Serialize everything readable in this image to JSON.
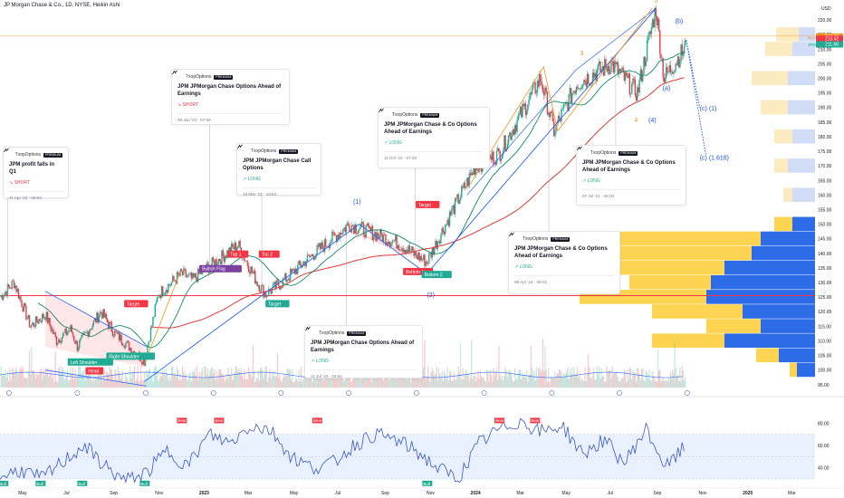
{
  "header": {
    "title": "JP Morgan Chase & Co., 1D, NYSE, Heikin Ashi"
  },
  "colors": {
    "up": "#22ab94",
    "down": "#f23645",
    "sma_red": "#e53935",
    "sma_green": "#0b8a6a",
    "channel_blue": "#2962ff",
    "wave_orange": "#f7931a",
    "wave_blue": "#1e53e5",
    "vp_yellow": "#fcd451",
    "vp_blue": "#2e6be6",
    "rsi_line": "#3a56c6"
  },
  "chart_data": {
    "type": "candlestick",
    "y_axis": {
      "currency": "USD",
      "ticks": [
        "95.00",
        "100.00",
        "105.00",
        "110.00",
        "115.00",
        "120.00",
        "125.00",
        "130.00",
        "135.00",
        "140.00",
        "145.00",
        "150.00",
        "155.00",
        "160.00",
        "165.00",
        "170.00",
        "175.00",
        "180.00",
        "185.00",
        "190.00",
        "195.00",
        "200.00",
        "205.00",
        "210.00",
        "215.00",
        "220.00"
      ],
      "ylim": [
        94,
        225
      ]
    },
    "x_axis": {
      "ticks": [
        "May",
        "Jul",
        "Sep",
        "Nov",
        "2023",
        "Mar",
        "May",
        "Jul",
        "Sep",
        "Nov",
        "2024",
        "Mar",
        "May",
        "Jul",
        "Sep",
        "Nov",
        "2025",
        "Mar"
      ]
    },
    "price_labels": [
      {
        "text": "213.99",
        "value": 213.99,
        "color": "#f7931a"
      },
      {
        "text": "213.42",
        "value": 213.42,
        "color": "#f23645"
      },
      {
        "text": "211.68",
        "value": 211.68,
        "color": "#22ab94"
      }
    ],
    "price_label_tags": [
      "Rev",
      "JPM"
    ],
    "horizontal_line": {
      "value": 125.5,
      "color": "#f23645"
    },
    "elliott_labels_orange": [
      "3",
      "4",
      "5"
    ],
    "elliott_labels_blue": [
      "(1)",
      "(2)",
      "(4)",
      "(a)",
      "(b)",
      "(c) (1)",
      "(c) (1.618)"
    ],
    "patterns": [
      "Left Shoulder",
      "Right Shoulder",
      "Bottom 1",
      "Bottom 2",
      "Bullish Flag",
      "Top 1",
      "Top 2",
      "Target",
      "Head"
    ],
    "series_close": [
      {
        "d": "2022-04-01",
        "c": 125
      },
      {
        "d": "2022-04-20",
        "c": 130
      },
      {
        "d": "2022-05-12",
        "c": 115
      },
      {
        "d": "2022-06-01",
        "c": 119
      },
      {
        "d": "2022-06-16",
        "c": 110
      },
      {
        "d": "2022-07-05",
        "c": 114
      },
      {
        "d": "2022-07-14",
        "c": 108
      },
      {
        "d": "2022-08-15",
        "c": 120
      },
      {
        "d": "2022-09-01",
        "c": 113
      },
      {
        "d": "2022-10-12",
        "c": 103
      },
      {
        "d": "2022-10-31",
        "c": 126
      },
      {
        "d": "2022-12-01",
        "c": 133
      },
      {
        "d": "2022-12-16",
        "c": 131
      },
      {
        "d": "2023-01-20",
        "c": 138
      },
      {
        "d": "2023-02-15",
        "c": 143
      },
      {
        "d": "2023-03-13",
        "c": 130
      },
      {
        "d": "2023-03-24",
        "c": 126
      },
      {
        "d": "2023-04-15",
        "c": 130
      },
      {
        "d": "2023-05-15",
        "c": 137
      },
      {
        "d": "2023-07-15",
        "c": 150
      },
      {
        "d": "2023-08-15",
        "c": 147
      },
      {
        "d": "2023-09-15",
        "c": 144
      },
      {
        "d": "2023-10-27",
        "c": 137
      },
      {
        "d": "2023-12-01",
        "c": 155
      },
      {
        "d": "2024-01-01",
        "c": 170
      },
      {
        "d": "2024-02-01",
        "c": 174
      },
      {
        "d": "2024-03-28",
        "c": 200
      },
      {
        "d": "2024-04-15",
        "c": 182
      },
      {
        "d": "2024-05-15",
        "c": 198
      },
      {
        "d": "2024-07-01",
        "c": 205
      },
      {
        "d": "2024-08-05",
        "c": 195
      },
      {
        "d": "2024-08-30",
        "c": 224
      },
      {
        "d": "2024-09-10",
        "c": 200
      },
      {
        "d": "2024-10-10",
        "c": 211
      }
    ],
    "forecast_paths": [
      {
        "name": "(c) (1)",
        "points": [
          {
            "d": "2024-10-10",
            "c": 213
          },
          {
            "d": "2024-10-28",
            "c": 190
          }
        ]
      },
      {
        "name": "(c) (1.618)",
        "points": [
          {
            "d": "2024-10-10",
            "c": 213
          },
          {
            "d": "2024-11-05",
            "c": 174
          }
        ]
      }
    ],
    "rsi": {
      "ticks": [
        "40.00",
        "60.00",
        "80.00"
      ],
      "ylim": [
        25,
        95
      ],
      "band": [
        30,
        70
      ],
      "values": [
        32,
        38,
        30,
        45,
        60,
        42,
        28,
        35,
        55,
        42,
        70,
        62,
        78,
        74,
        50,
        40,
        44,
        60,
        70,
        65,
        55,
        40,
        30,
        62,
        75,
        82,
        72,
        78,
        52,
        65,
        44,
        75,
        40,
        60
      ],
      "labels_bull": [
        "Bull",
        "Bull",
        "Bull",
        "Bull",
        "Bull"
      ],
      "labels_bear": [
        "Bear",
        "Bear",
        "Bear",
        "Bear",
        "Bear"
      ]
    }
  },
  "ideas": [
    {
      "author": "TxopOptions",
      "badge": "PREMIUM",
      "title": "JPM profit falls in Q1",
      "direction": "SHORT",
      "date": "11 Apr '22 · 08:53"
    },
    {
      "author": "TxopOptions",
      "badge": "PREMIUM",
      "title": "JPM JPMorgan Chase Options Ahead of Earnings",
      "direction": "SHORT",
      "date": "08 Jan '23 · 07:59"
    },
    {
      "author": "TxopOptions",
      "badge": "PREMIUM",
      "title": "JPM JPMorgan Chase Call Options",
      "direction": "LONG",
      "date": "19 Mar '23 · 10:54"
    },
    {
      "author": "TxopOptions",
      "badge": "PREMIUM",
      "title": "JPM JPMorgan Chase Options Ahead of Earnings",
      "direction": "LONG",
      "date": "11 Jul '23 · 16:52"
    },
    {
      "author": "TxopOptions",
      "badge": "PREMIUM",
      "title": "JPM JPMorgan Chase & Co Options Ahead of Earnings",
      "direction": "LONG",
      "date": "11 Oct '23 · 07:43"
    },
    {
      "author": "TxopOptions",
      "badge": "PREMIUM",
      "title": "JPM JPMorgan Chase & Co Options Ahead of Earnings",
      "direction": "LONG",
      "date": "08 Apr '24 · 09:01"
    },
    {
      "author": "TxopOptions",
      "badge": "PREMIUM",
      "title": "JPM JPMorgan Chase & Co Options Ahead of Earnings",
      "direction": "LONG",
      "date": "07 Jul '24 · 06:03"
    }
  ]
}
